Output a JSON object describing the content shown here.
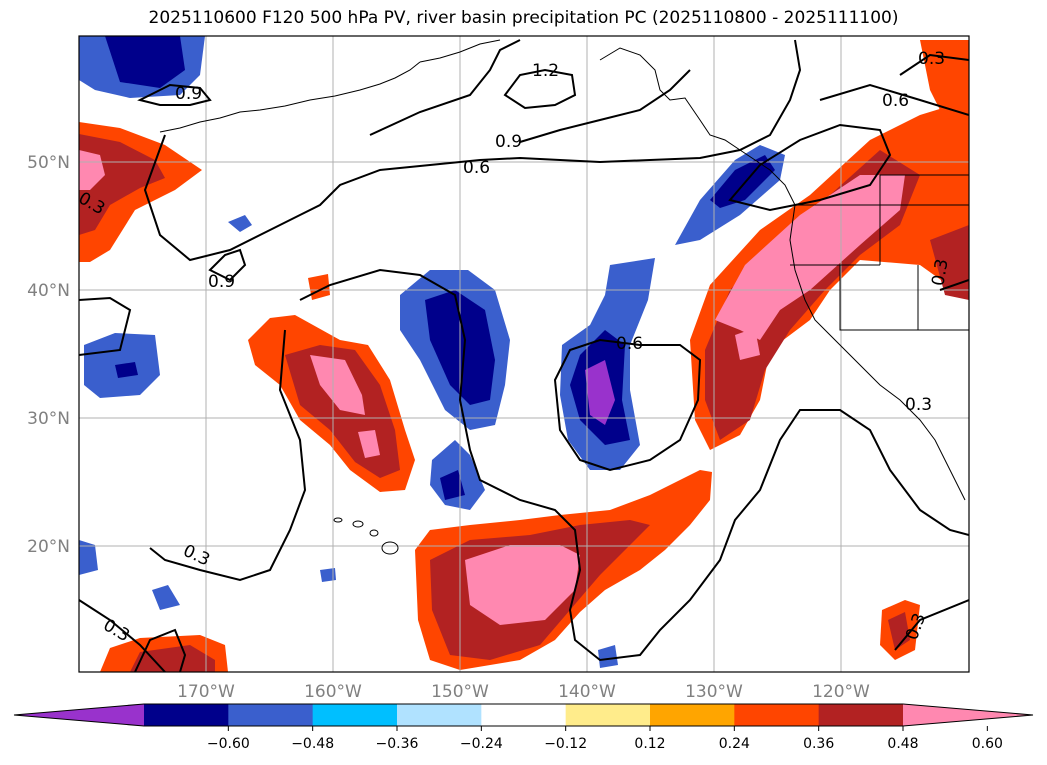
{
  "title": "2025110600 F120 500 hPa PV, river basin precipitation PC (2025110800 - 2025111100)",
  "lat_labels": [
    "50°N",
    "40°N",
    "30°N",
    "20°N"
  ],
  "lon_labels": [
    "170°W",
    "160°W",
    "150°W",
    "140°W",
    "130°W",
    "120°W"
  ],
  "contour_labels": [
    "1.2",
    "0.9",
    "0.9",
    "0.9",
    "0.6",
    "0.6",
    "0.6",
    "0.3",
    "0.3",
    "0.3",
    "0.3",
    "0.3",
    "0.3",
    "0.3"
  ],
  "colorbar": {
    "tick_labels": [
      "−0.60",
      "−0.48",
      "−0.36",
      "−0.24",
      "−0.12",
      "0.12",
      "0.24",
      "0.36",
      "0.48",
      "0.60"
    ],
    "colors": [
      "#9932cc",
      "#00008b",
      "#3a5fcd",
      "#00bfff",
      "#b0e2ff",
      "#ffffff",
      "#ffec8b",
      "#ffa500",
      "#ff4500",
      "#b22222",
      "#ff88b0"
    ]
  },
  "colors": {
    "grid": "#b0b0b0",
    "axis_label": "#808080",
    "contour": "#000000"
  }
}
